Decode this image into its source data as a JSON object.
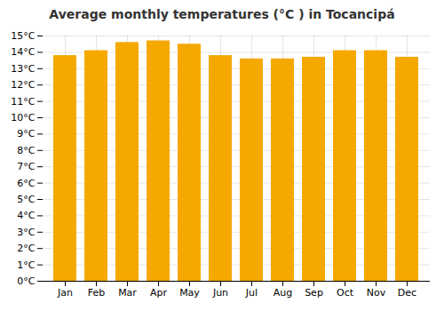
{
  "chart_data": {
    "type": "bar",
    "title": "Average monthly temperatures (°C ) in Tocancipá",
    "categories": [
      "Jan",
      "Feb",
      "Mar",
      "Apr",
      "May",
      "Jun",
      "Jul",
      "Aug",
      "Sep",
      "Oct",
      "Nov",
      "Dec"
    ],
    "values": [
      13.8,
      14.1,
      14.6,
      14.7,
      14.5,
      13.8,
      13.6,
      13.6,
      13.7,
      14.1,
      14.1,
      13.7
    ],
    "color": "#F5A800",
    "ylim": [
      0,
      15
    ],
    "yticks": [
      {
        "value": 0,
        "label": "0°C"
      },
      {
        "value": 1,
        "label": "1°C"
      },
      {
        "value": 2,
        "label": "2°C"
      },
      {
        "value": 3,
        "label": "3°C"
      },
      {
        "value": 4,
        "label": "4°C"
      },
      {
        "value": 5,
        "label": "5°C"
      },
      {
        "value": 6,
        "label": "6°C"
      },
      {
        "value": 7,
        "label": "7°C"
      },
      {
        "value": 8,
        "label": "8°C"
      },
      {
        "value": 9,
        "label": "9°C"
      },
      {
        "value": 10,
        "label": "10°C"
      },
      {
        "value": 11,
        "label": "11°C"
      },
      {
        "value": 12,
        "label": "12°C"
      },
      {
        "value": 13,
        "label": "13°C"
      },
      {
        "value": 14,
        "label": "14°C"
      },
      {
        "value": 15,
        "label": "15°C"
      }
    ],
    "grid": true
  }
}
